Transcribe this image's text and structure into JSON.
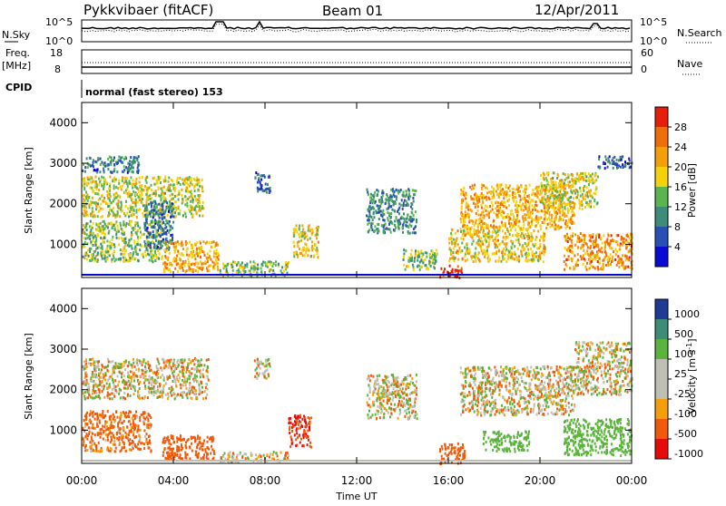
{
  "header": {
    "station": "Pykkvibaer (fitACF)",
    "beam": "Beam 01",
    "date": "12/Apr/2011"
  },
  "panels": {
    "nsky": {
      "left_label": "N.Sky",
      "top": "10^5",
      "bottom": "10^0",
      "right_label": "N.Search",
      "right_top": "10^5",
      "right_bottom": "10^0"
    },
    "freq": {
      "left_label_1": "Freq.",
      "left_label_2": "[MHz]",
      "top": "18",
      "bottom": "8",
      "right_top": "60",
      "right_bottom": "0",
      "right_label": "Nave"
    },
    "cpid": {
      "label": "CPID",
      "text": "normal (fast stereo) 153"
    }
  },
  "colors": {
    "power": [
      "#0a0ad2",
      "#2850b4",
      "#3c8c78",
      "#5ab450",
      "#f5d20a",
      "#f5a00a",
      "#f06e0a",
      "#e61e0a"
    ],
    "velocity": [
      "#e60a0a",
      "#f05a0a",
      "#f5a00a",
      "#bebeb4",
      "#bebeb4",
      "#5ab43c",
      "#3c8c78",
      "#1e3c96"
    ]
  },
  "chart_data": [
    {
      "type": "heatmap",
      "title": "",
      "xlabel": "",
      "ylabel": "Slant Range [km]",
      "x_ticks": [
        "00:00",
        "04:00",
        "08:00",
        "12:00",
        "16:00",
        "20:00",
        "00:00"
      ],
      "y_ticks": [
        "1000",
        "2000",
        "3000",
        "4000"
      ],
      "ylim": [
        180,
        4500
      ],
      "colorbar": {
        "label": "Power [dB]",
        "ticks": [
          "4",
          "8",
          "12",
          "16",
          "20",
          "24",
          "28"
        ],
        "range": [
          0,
          30
        ]
      },
      "features": [
        {
          "t_start": 0.0,
          "t_end": 5.3,
          "range_start": 1700,
          "range_end": 2700,
          "level": 16
        },
        {
          "t_start": 0.0,
          "t_end": 2.5,
          "range_start": 2800,
          "range_end": 3200,
          "level": 8
        },
        {
          "t_start": 0.0,
          "t_end": 3.5,
          "range_start": 600,
          "range_end": 1600,
          "level": 14
        },
        {
          "t_start": 2.7,
          "t_end": 4.0,
          "range_start": 900,
          "range_end": 2100,
          "level": 8
        },
        {
          "t_start": 3.5,
          "t_end": 6.0,
          "range_start": 350,
          "range_end": 1100,
          "level": 20
        },
        {
          "t_start": 6.0,
          "t_end": 9.0,
          "range_start": 250,
          "range_end": 600,
          "level": 14
        },
        {
          "t_start": 7.5,
          "t_end": 8.2,
          "range_start": 2300,
          "range_end": 2800,
          "level": 6
        },
        {
          "t_start": 9.2,
          "t_end": 10.3,
          "range_start": 700,
          "range_end": 1500,
          "level": 18
        },
        {
          "t_start": 12.4,
          "t_end": 14.6,
          "range_start": 1300,
          "range_end": 2400,
          "level": 10
        },
        {
          "t_start": 14.0,
          "t_end": 15.5,
          "range_start": 400,
          "range_end": 900,
          "level": 14
        },
        {
          "t_start": 15.6,
          "t_end": 16.6,
          "range_start": 200,
          "range_end": 500,
          "level": 28
        },
        {
          "t_start": 16.0,
          "t_end": 20.2,
          "range_start": 600,
          "range_end": 1400,
          "level": 18
        },
        {
          "t_start": 16.5,
          "t_end": 21.5,
          "range_start": 1400,
          "range_end": 2500,
          "level": 20
        },
        {
          "t_start": 20.0,
          "t_end": 22.5,
          "range_start": 1900,
          "range_end": 2800,
          "level": 16
        },
        {
          "t_start": 21.0,
          "t_end": 24.0,
          "range_start": 400,
          "range_end": 1300,
          "level": 22
        },
        {
          "t_start": 22.5,
          "t_end": 24.0,
          "range_start": 2900,
          "range_end": 3200,
          "level": 6
        }
      ]
    },
    {
      "type": "heatmap",
      "title": "",
      "xlabel": "Time UT",
      "ylabel": "Slant Range [km]",
      "x_ticks": [
        "00:00",
        "04:00",
        "08:00",
        "12:00",
        "16:00",
        "20:00",
        "00:00"
      ],
      "y_ticks": [
        "1000",
        "2000",
        "3000",
        "4000"
      ],
      "ylim": [
        180,
        4500
      ],
      "colorbar": {
        "label": "Velocity [m s^-1]",
        "ticks": [
          "1000",
          "500",
          "100",
          "25",
          "-25",
          "-100",
          "-500",
          "-1000"
        ],
        "range": [
          -1000,
          1000
        ]
      },
      "features": [
        {
          "t_start": 0.0,
          "t_end": 5.5,
          "range_start": 1800,
          "range_end": 2800,
          "level": 0
        },
        {
          "t_start": 0.0,
          "t_end": 3.0,
          "range_start": 500,
          "range_end": 1500,
          "level": -200
        },
        {
          "t_start": 3.5,
          "t_end": 5.8,
          "range_start": 300,
          "range_end": 900,
          "level": -300
        },
        {
          "t_start": 6.0,
          "t_end": 9.0,
          "range_start": 250,
          "range_end": 500,
          "level": 0
        },
        {
          "t_start": 7.5,
          "t_end": 8.2,
          "range_start": 2300,
          "range_end": 2800,
          "level": 0
        },
        {
          "t_start": 9.0,
          "t_end": 10.0,
          "range_start": 600,
          "range_end": 1400,
          "level": -500
        },
        {
          "t_start": 12.4,
          "t_end": 14.6,
          "range_start": 1300,
          "range_end": 2400,
          "level": 0
        },
        {
          "t_start": 15.6,
          "t_end": 16.7,
          "range_start": 200,
          "range_end": 700,
          "level": -300
        },
        {
          "t_start": 16.5,
          "t_end": 21.5,
          "range_start": 1400,
          "range_end": 2600,
          "level": 0
        },
        {
          "t_start": 17.5,
          "t_end": 19.5,
          "range_start": 500,
          "range_end": 1000,
          "level": 300
        },
        {
          "t_start": 21.0,
          "t_end": 24.0,
          "range_start": 400,
          "range_end": 1300,
          "level": 300
        },
        {
          "t_start": 21.5,
          "t_end": 24.0,
          "range_start": 1900,
          "range_end": 3200,
          "level": 0
        }
      ]
    }
  ]
}
